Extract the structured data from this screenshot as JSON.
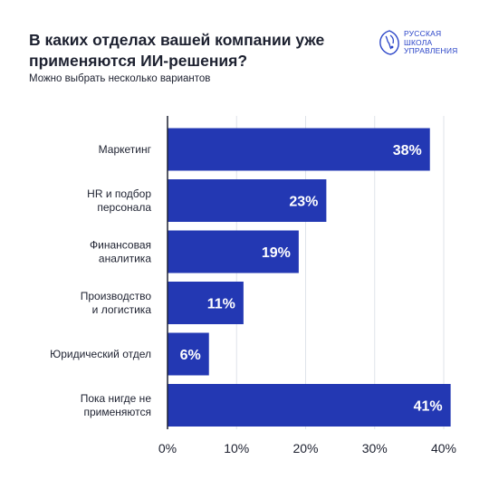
{
  "header": {
    "title": "В каких отделах вашей компании уже применяются ИИ-решения?",
    "subtitle": "Можно выбрать несколько вариантов"
  },
  "logo": {
    "line1": "РУССКАЯ",
    "line2": "ШКОЛА",
    "line3": "УПРАВЛЕНИЯ",
    "icon": "rsu-emblem-icon",
    "color": "#2a44c8"
  },
  "chart_data": {
    "type": "bar",
    "orientation": "horizontal",
    "categories": [
      [
        "Маркетинг"
      ],
      [
        "HR и подбор",
        "персонала"
      ],
      [
        "Финансовая",
        "аналитика"
      ],
      [
        "Производство",
        "и логистика"
      ],
      [
        "Юридический отдел"
      ],
      [
        "Пока нигде не",
        "применяются"
      ]
    ],
    "values": [
      38,
      23,
      19,
      11,
      6,
      41
    ],
    "value_labels": [
      "38%",
      "23%",
      "19%",
      "11%",
      "6%",
      "41%"
    ],
    "xticks": [
      "0%",
      "10%",
      "20%",
      "30%",
      "40%"
    ],
    "xlim": [
      0,
      40
    ],
    "grid": true,
    "bar_color": "#2338b3",
    "grid_color": "#dfe3ea"
  }
}
